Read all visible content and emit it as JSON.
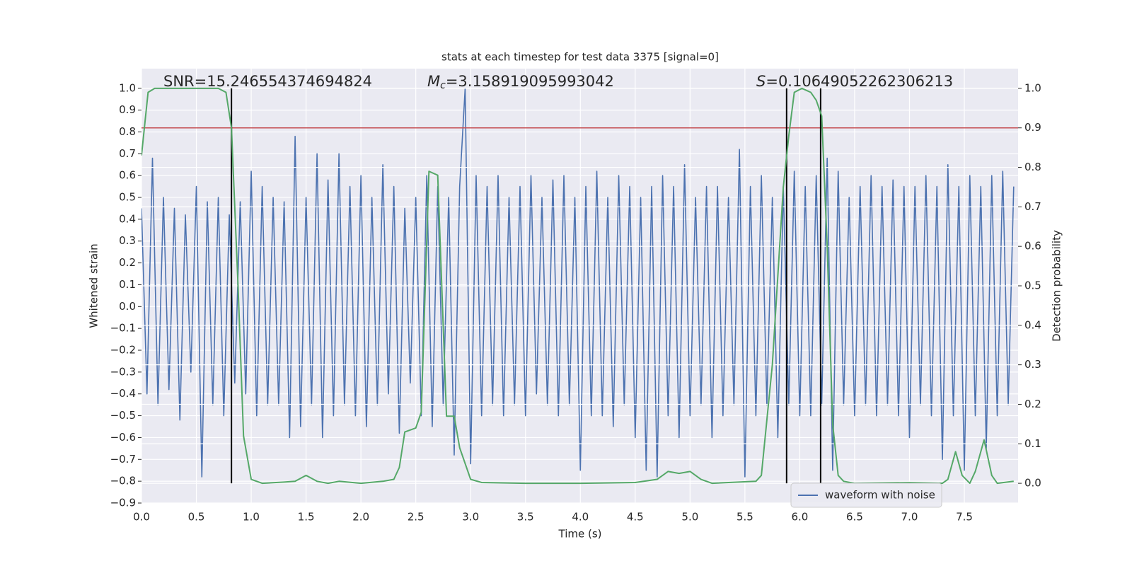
{
  "chart_data": {
    "type": "line",
    "title": "stats at each timestep for test data 3375 [signal=0]",
    "xlabel": "Time (s)",
    "ylabel": "Whitened strain",
    "y2label": "Detection probability",
    "xlim": [
      0,
      7.99
    ],
    "ylim": [
      -0.9,
      1.09
    ],
    "y2lim": [
      -0.05,
      1.05
    ],
    "xticks": [
      {
        "value": 0,
        "label": "0.0"
      },
      0.5,
      {
        "value": 1,
        "label": "1.0"
      },
      1.5,
      {
        "value": 2,
        "label": "2.0"
      },
      2.5,
      {
        "value": 3,
        "label": "3.0"
      },
      3.5,
      {
        "value": 4,
        "label": "4.0"
      },
      4.5,
      {
        "value": 5,
        "label": "5.0"
      },
      5.5,
      {
        "value": 6,
        "label": "6.0"
      },
      6.5,
      {
        "value": 7,
        "label": "7.0"
      },
      7.5
    ],
    "yticks": [
      {
        "value": -0.9,
        "label": "−0.9"
      },
      {
        "value": -0.8,
        "label": "−0.8"
      },
      {
        "value": -0.7,
        "label": "−0.7"
      },
      {
        "value": -0.6,
        "label": "−0.6"
      },
      {
        "value": -0.5,
        "label": "−0.5"
      },
      {
        "value": -0.4,
        "label": "−0.4"
      },
      {
        "value": -0.3,
        "label": "−0.3"
      },
      {
        "value": -0.2,
        "label": "−0.2"
      },
      {
        "value": -0.1,
        "label": "−0.1"
      },
      {
        "value": 0,
        "label": "0.0"
      },
      0.1,
      0.2,
      0.3,
      0.4,
      0.5,
      0.6,
      0.7,
      0.8,
      0.9,
      {
        "value": 1,
        "label": "1.0"
      }
    ],
    "y2ticks": [
      {
        "value": 0,
        "label": "0.0"
      },
      0.1,
      0.2,
      0.3,
      0.4,
      0.5,
      0.6,
      0.7,
      0.8,
      0.9,
      {
        "value": 1,
        "label": "1.0"
      }
    ],
    "grid": true,
    "legend": "lower right",
    "series": [
      {
        "name": "waveform with noise",
        "color": "#4c72b0",
        "axis": "y",
        "x": [
          0,
          0.05,
          0.1,
          0.15,
          0.2,
          0.25,
          0.3,
          0.35,
          0.4,
          0.45,
          0.5,
          0.55,
          0.6,
          0.65,
          0.7,
          0.75,
          0.8,
          0.85,
          0.9,
          0.95,
          1,
          1.05,
          1.1,
          1.15,
          1.2,
          1.25,
          1.3,
          1.35,
          1.4,
          1.45,
          1.5,
          1.55,
          1.6,
          1.65,
          1.7,
          1.75,
          1.8,
          1.85,
          1.9,
          1.95,
          2,
          2.05,
          2.1,
          2.15,
          2.2,
          2.25,
          2.3,
          2.35,
          2.4,
          2.45,
          2.5,
          2.55,
          2.6,
          2.65,
          2.7,
          2.75,
          2.8,
          2.85,
          2.9,
          2.95,
          3,
          3.05,
          3.1,
          3.15,
          3.2,
          3.25,
          3.3,
          3.35,
          3.4,
          3.45,
          3.5,
          3.55,
          3.6,
          3.65,
          3.7,
          3.75,
          3.8,
          3.85,
          3.9,
          3.95,
          4,
          4.05,
          4.1,
          4.15,
          4.2,
          4.25,
          4.3,
          4.35,
          4.4,
          4.45,
          4.5,
          4.55,
          4.6,
          4.65,
          4.7,
          4.75,
          4.8,
          4.85,
          4.9,
          4.95,
          5,
          5.05,
          5.1,
          5.15,
          5.2,
          5.25,
          5.3,
          5.35,
          5.4,
          5.45,
          5.5,
          5.55,
          5.6,
          5.65,
          5.7,
          5.75,
          5.8,
          5.85,
          5.9,
          5.95,
          6,
          6.05,
          6.1,
          6.15,
          6.2,
          6.25,
          6.3,
          6.35,
          6.4,
          6.45,
          6.5,
          6.55,
          6.6,
          6.65,
          6.7,
          6.75,
          6.8,
          6.85,
          6.9,
          6.95,
          7,
          7.05,
          7.1,
          7.15,
          7.2,
          7.25,
          7.3,
          7.35,
          7.4,
          7.45,
          7.5,
          7.55,
          7.6,
          7.65,
          7.7,
          7.75,
          7.8,
          7.85,
          7.9,
          7.95
        ],
        "values": [
          0.45,
          -0.4,
          0.68,
          -0.45,
          0.5,
          -0.38,
          0.45,
          -0.52,
          0.42,
          -0.3,
          0.55,
          -0.78,
          0.48,
          -0.45,
          0.5,
          -0.5,
          0.42,
          -0.35,
          0.48,
          -0.4,
          0.62,
          -0.5,
          0.55,
          -0.45,
          0.5,
          -0.45,
          0.48,
          -0.6,
          0.78,
          -0.55,
          0.5,
          -0.45,
          0.7,
          -0.6,
          0.58,
          -0.5,
          0.7,
          -0.45,
          0.55,
          -0.5,
          0.6,
          -0.55,
          0.5,
          -0.45,
          0.65,
          -0.4,
          0.55,
          -0.58,
          0.45,
          -0.35,
          0.5,
          -0.5,
          0.6,
          -0.55,
          0.55,
          -0.45,
          0.5,
          -0.68,
          0.55,
          1.0,
          -0.72,
          0.6,
          -0.5,
          0.55,
          -0.45,
          0.6,
          -0.5,
          0.5,
          -0.45,
          0.55,
          -0.5,
          0.6,
          -0.4,
          0.5,
          -0.45,
          0.58,
          -0.5,
          0.6,
          -0.45,
          0.5,
          -0.75,
          0.55,
          -0.5,
          0.62,
          -0.5,
          0.5,
          -0.55,
          0.6,
          -0.45,
          0.55,
          -0.6,
          0.5,
          -0.75,
          0.55,
          -0.78,
          0.6,
          -0.5,
          0.55,
          -0.6,
          0.65,
          -0.5,
          0.5,
          -0.45,
          0.55,
          -0.6,
          0.55,
          -0.5,
          0.5,
          -0.45,
          0.72,
          -0.78,
          0.55,
          -0.5,
          0.6,
          -0.45,
          0.5,
          -0.6,
          0.55,
          -0.45,
          0.62,
          -0.5,
          0.55,
          -0.5,
          0.6,
          -0.45,
          0.68,
          -0.75,
          0.62,
          -0.45,
          0.5,
          -0.5,
          0.55,
          -0.45,
          0.6,
          -0.5,
          0.55,
          -0.45,
          0.58,
          -0.5,
          0.55,
          -0.6,
          0.55,
          -0.45,
          0.6,
          -0.5,
          0.55,
          -0.7,
          0.65,
          -0.5,
          0.55,
          -0.75,
          0.6,
          -0.5,
          0.55,
          -0.65,
          0.6,
          -0.5,
          0.62,
          -0.45,
          0.55
        ]
      },
      {
        "color": "#55a868",
        "axis": "y2",
        "x": [
          0,
          0.06,
          0.12,
          0.5,
          0.7,
          0.77,
          0.82,
          0.88,
          0.93,
          1,
          1.1,
          1.3,
          1.4,
          1.5,
          1.6,
          1.7,
          1.8,
          2,
          2.2,
          2.3,
          2.35,
          2.4,
          2.5,
          2.55,
          2.62,
          2.7,
          2.78,
          2.85,
          2.9,
          3,
          3.1,
          3.5,
          4,
          4.5,
          4.7,
          4.8,
          4.9,
          5,
          5.1,
          5.2,
          5.6,
          5.65,
          5.75,
          5.85,
          5.9,
          5.95,
          6.02,
          6.1,
          6.15,
          6.2,
          6.25,
          6.3,
          6.35,
          6.4,
          6.5,
          7,
          7.3,
          7.35,
          7.42,
          7.48,
          7.55,
          7.6,
          7.68,
          7.75,
          7.8,
          7.95
        ],
        "values": [
          0.83,
          0.99,
          1.0,
          1.0,
          1.0,
          0.99,
          0.9,
          0.5,
          0.12,
          0.01,
          0.0,
          0.003,
          0.005,
          0.02,
          0.005,
          0.0,
          0.005,
          0.0,
          0.005,
          0.01,
          0.04,
          0.13,
          0.14,
          0.18,
          0.79,
          0.78,
          0.17,
          0.17,
          0.09,
          0.01,
          0.002,
          0.0,
          0.0,
          0.002,
          0.01,
          0.03,
          0.025,
          0.03,
          0.01,
          0.0,
          0.005,
          0.02,
          0.3,
          0.75,
          0.88,
          0.99,
          1.0,
          0.99,
          0.97,
          0.93,
          0.6,
          0.15,
          0.02,
          0.005,
          0.0,
          0.002,
          0.0,
          0.01,
          0.08,
          0.02,
          0.0,
          0.03,
          0.11,
          0.02,
          0.0,
          0.005
        ]
      }
    ],
    "threshold": {
      "value": 0.9,
      "color": "#c44e52",
      "axis": "y2"
    },
    "vlines": {
      "x": [
        0.82,
        5.88,
        6.19
      ],
      "color": "#000000"
    },
    "annotations": [
      {
        "text": "SNR=15.246554374694824"
      },
      {
        "symbol": "M",
        "subscript": "c",
        "text": "=3.158919095993042"
      },
      {
        "symbol": "S",
        "text": "=0.10649052262306213"
      }
    ]
  }
}
